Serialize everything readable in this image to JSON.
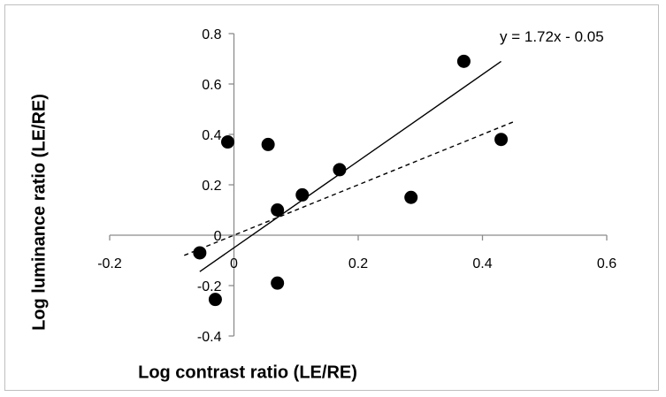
{
  "chart_data": {
    "type": "scatter",
    "xlabel": "Log contrast ratio (LE/RE)",
    "ylabel": "Log luminance ratio (LE/RE)",
    "xlim": [
      -0.2,
      0.6
    ],
    "ylim": [
      -0.4,
      0.8
    ],
    "x_ticks": [
      -0.2,
      0,
      0.2,
      0.4,
      0.6
    ],
    "y_ticks": [
      -0.4,
      -0.2,
      0,
      0.2,
      0.4,
      0.6,
      0.8
    ],
    "x_tick_labels": [
      "-0.2",
      "0",
      "0.2",
      "0.4",
      "0.6"
    ],
    "y_tick_labels": [
      "-0.4",
      "-0.2",
      "0",
      "0.2",
      "0.4",
      "0.6",
      "0.8"
    ],
    "grid": false,
    "points": [
      {
        "x": -0.055,
        "y": -0.07
      },
      {
        "x": -0.03,
        "y": -0.255
      },
      {
        "x": -0.01,
        "y": 0.37
      },
      {
        "x": 0.055,
        "y": 0.36
      },
      {
        "x": 0.07,
        "y": 0.1
      },
      {
        "x": 0.07,
        "y": -0.19
      },
      {
        "x": 0.11,
        "y": 0.16
      },
      {
        "x": 0.17,
        "y": 0.26
      },
      {
        "x": 0.285,
        "y": 0.15
      },
      {
        "x": 0.37,
        "y": 0.69
      },
      {
        "x": 0.43,
        "y": 0.38
      }
    ],
    "fit_line": {
      "equation": "y = 1.72x - 0.05",
      "slope": 1.72,
      "intercept": -0.05,
      "x_range": [
        -0.055,
        0.43
      ],
      "style": "solid"
    },
    "reference_line": {
      "slope": 1.0,
      "intercept": 0.0,
      "x_range": [
        -0.08,
        0.45
      ],
      "style": "dashed"
    }
  }
}
